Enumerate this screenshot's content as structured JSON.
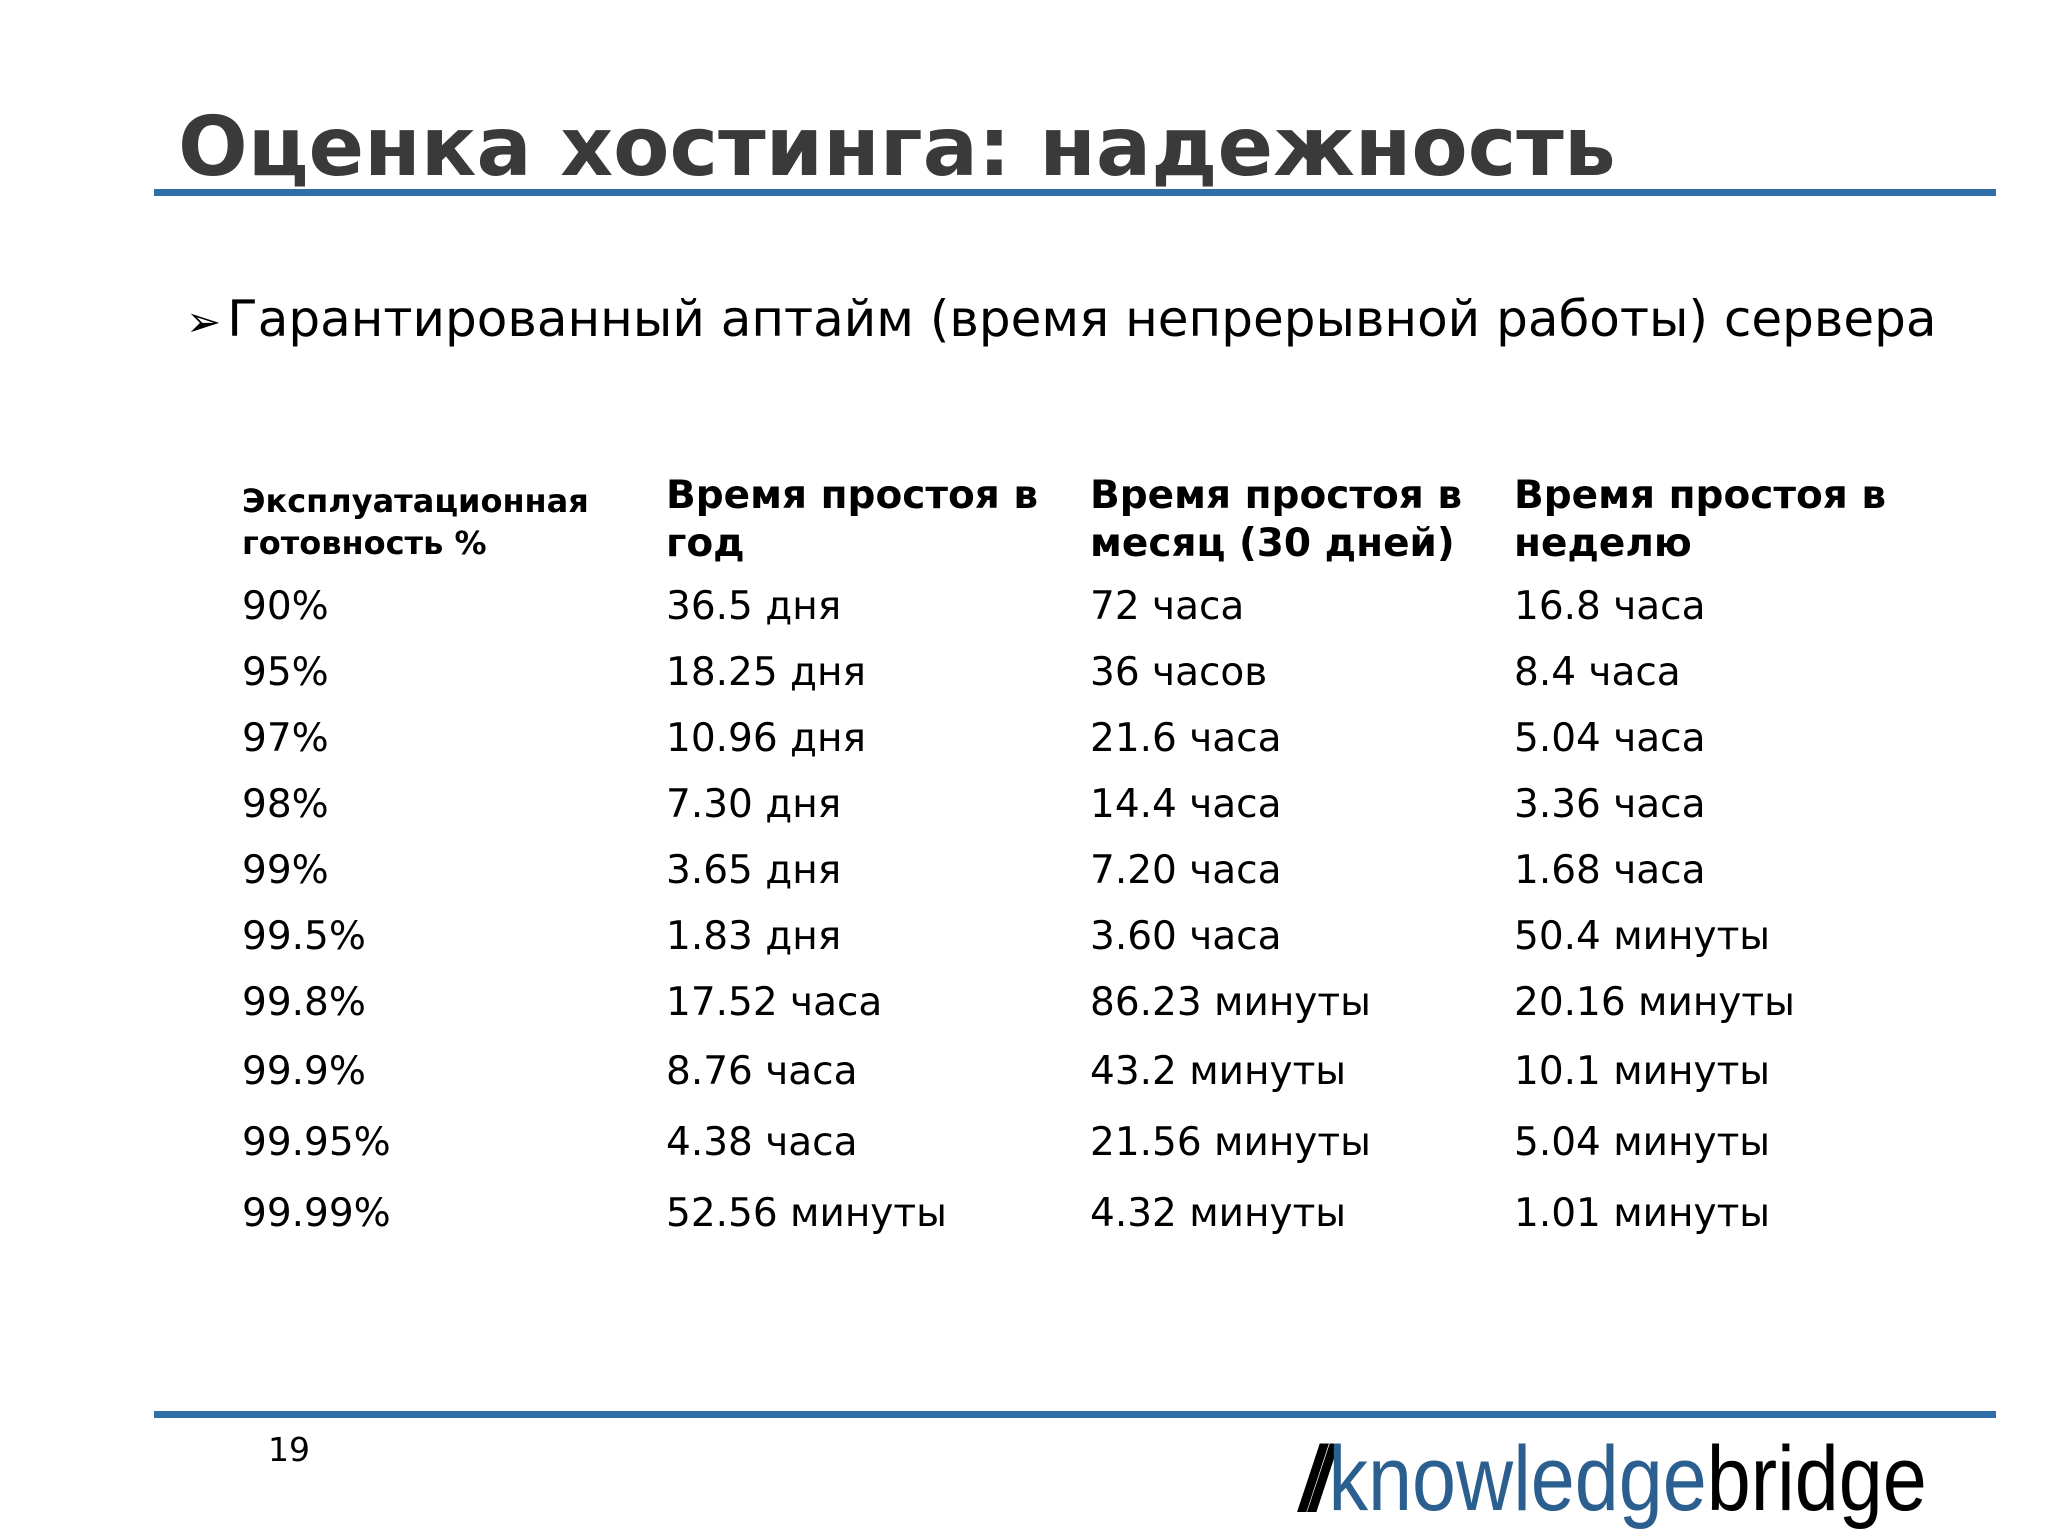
{
  "slide": {
    "title": "Оценка хостинга: надежность",
    "bullet": "Гарантированный аптайм (время непрерывной работы) сервера",
    "page_number": "19"
  },
  "table": {
    "headers": [
      "Эксплуатационная готовность  %",
      "Время простоя в год",
      "Время простоя в месяц (30 дней)",
      "Время простоя в неделю"
    ],
    "rows": [
      [
        "90%",
        "36.5 дня",
        "72 часа",
        "16.8 часа"
      ],
      [
        "95%",
        "18.25 дня",
        "36 часов",
        "8.4 часа"
      ],
      [
        "97%",
        "10.96 дня",
        "21.6 часа",
        "5.04 часа"
      ],
      [
        "98%",
        "7.30 дня",
        "14.4 часа",
        "3.36 часа"
      ],
      [
        "99%",
        "3.65 дня",
        "7.20 часа",
        "1.68 часа"
      ],
      [
        "99.5%",
        "1.83 дня",
        "3.60 часа",
        "50.4 минуты"
      ],
      [
        "99.8%",
        "17.52 часа",
        "86.23 минуты",
        "20.16 минуты"
      ],
      [
        "99.9%",
        "8.76 часа",
        "43.2 минуты",
        "10.1 минуты"
      ],
      [
        "99.95%",
        "4.38 часа",
        "21.56 минуты",
        "5.04 минуты"
      ],
      [
        "99.99%",
        "52.56 минуты",
        "4.32 минуты",
        "1.01 минуты"
      ]
    ]
  },
  "logo": {
    "slashes": "//",
    "part1": "knowledge",
    "part2": "bridge"
  },
  "colors": {
    "accent": "#2f6ea8",
    "title": "#3a3a3a",
    "logo_blue": "#2b5f8f"
  }
}
